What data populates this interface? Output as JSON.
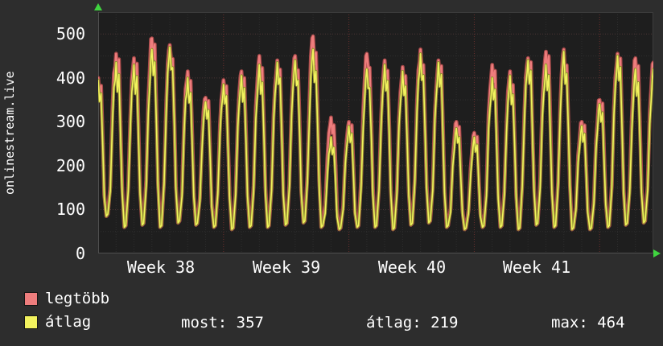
{
  "title": "onlinestream.live",
  "colors": {
    "background": "#2d2d2d",
    "plot_background": "#1e1e1e",
    "text": "#ffffff",
    "grid_minor": "#2e2e2e",
    "grid_major": "#4a3434",
    "grid_week": "#6b302e",
    "plot_border": "#3c3c3c",
    "axis_line": "#4f4f4f",
    "axis_arrow": "#3fd43f",
    "legtobb_line": "#ee7d7d",
    "legtobb_edge": "#a84a4a",
    "atlag_line": "#f2f25e",
    "atlag_edge": "#8d8d2f"
  },
  "y_axis": {
    "ticks": [
      0,
      100,
      200,
      300,
      400,
      500
    ],
    "max": 550
  },
  "x_axis": {
    "labels": [
      "Week 38",
      "Week 39",
      "Week 40",
      "Week 41"
    ]
  },
  "legend": [
    {
      "label": "legtöbb",
      "color_key": "legtobb_line"
    },
    {
      "label": "átlag",
      "color_key": "atlag_line"
    }
  ],
  "stats": [
    {
      "text": "most: 357"
    },
    {
      "text": "átlag: 219"
    },
    {
      "text": "max: 464"
    }
  ],
  "chart_data": {
    "type": "line",
    "title": "onlinestream.live",
    "x_categories": [
      "Week 38",
      "Week 39",
      "Week 40",
      "Week 41"
    ],
    "x_unit": "days (≈31 days across weeks 38–41, one rise/fall cycle per day)",
    "ylim": [
      0,
      550
    ],
    "y_ticks": [
      0,
      100,
      200,
      300,
      400,
      500
    ],
    "legend_position": "bottom-left",
    "grid": true,
    "series": [
      {
        "name": "legtöbb",
        "daily_peaks": [
          400,
          455,
          445,
          490,
          475,
          415,
          355,
          395,
          415,
          450,
          440,
          450,
          495,
          310,
          300,
          455,
          440,
          425,
          465,
          440,
          300,
          275,
          430,
          415,
          445,
          460,
          465,
          300,
          350,
          455,
          445,
          435
        ]
      },
      {
        "name": "átlag",
        "daily_peaks": [
          395,
          435,
          430,
          465,
          470,
          400,
          345,
          385,
          405,
          430,
          435,
          440,
          465,
          265,
          290,
          420,
          430,
          415,
          455,
          435,
          285,
          265,
          400,
          405,
          440,
          430,
          460,
          290,
          340,
          450,
          420,
          420
        ]
      }
    ],
    "daily_troughs": [
      85,
      85,
      60,
      65,
      60,
      70,
      65,
      60,
      55,
      60,
      60,
      65,
      70,
      60,
      55,
      60,
      60,
      55,
      65,
      70,
      60,
      55,
      60,
      60,
      55,
      65,
      60,
      55,
      55,
      60,
      65,
      70
    ],
    "summary": {
      "most": 357,
      "atlag": 219,
      "max": 464
    }
  }
}
